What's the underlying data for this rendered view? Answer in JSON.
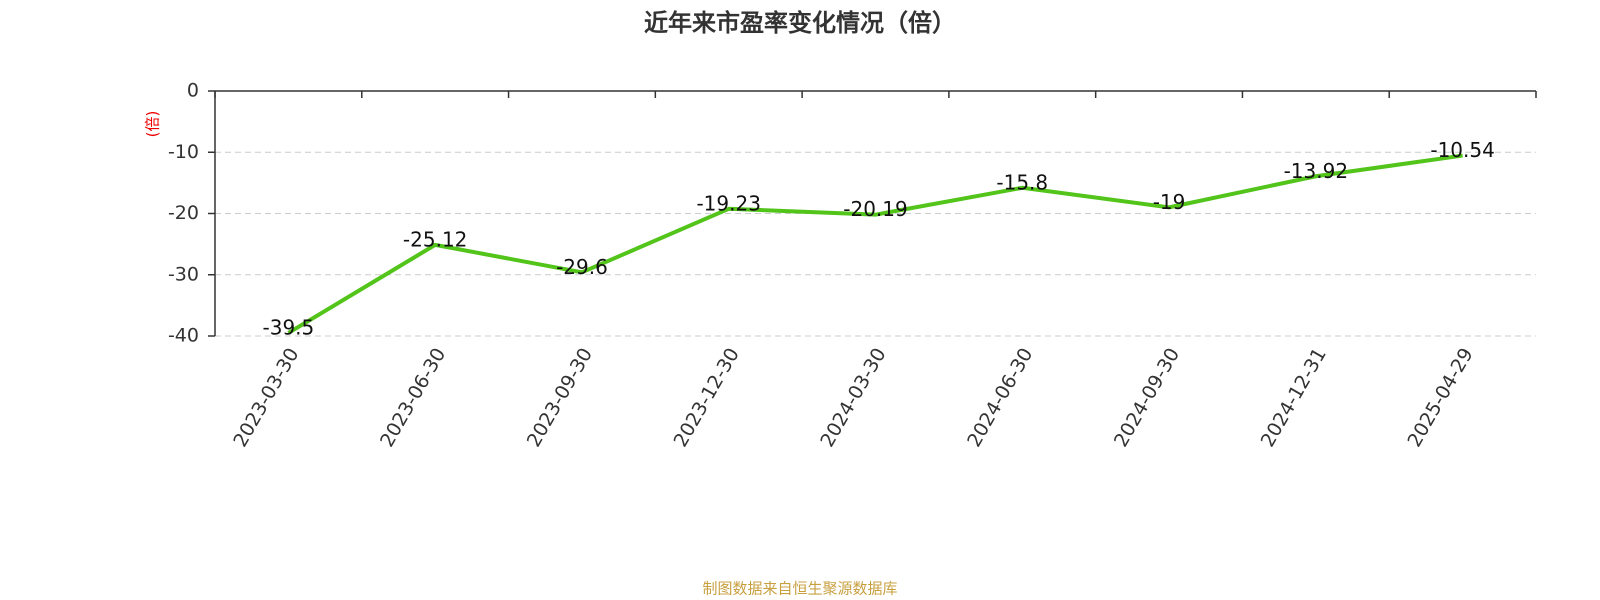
{
  "chart_data": {
    "type": "line",
    "title": "近年来市盈率变化情况（倍）",
    "y_label": "(倍)",
    "source": "制图数据来自恒生聚源数据库",
    "categories": [
      "2023-03-30",
      "2023-06-30",
      "2023-09-30",
      "2023-12-30",
      "2024-03-30",
      "2024-06-30",
      "2024-09-30",
      "2024-12-31",
      "2025-04-29"
    ],
    "series": [
      {
        "name": "市盈率",
        "color": "#52c41a",
        "values": [
          -39.5,
          -25.12,
          -29.6,
          -19.23,
          -20.19,
          -15.8,
          -19,
          -13.92,
          -10.54
        ]
      }
    ],
    "ylim": [
      -40,
      0
    ],
    "yticks": [
      0,
      -10,
      -20,
      -30,
      -40
    ],
    "grid": true
  }
}
